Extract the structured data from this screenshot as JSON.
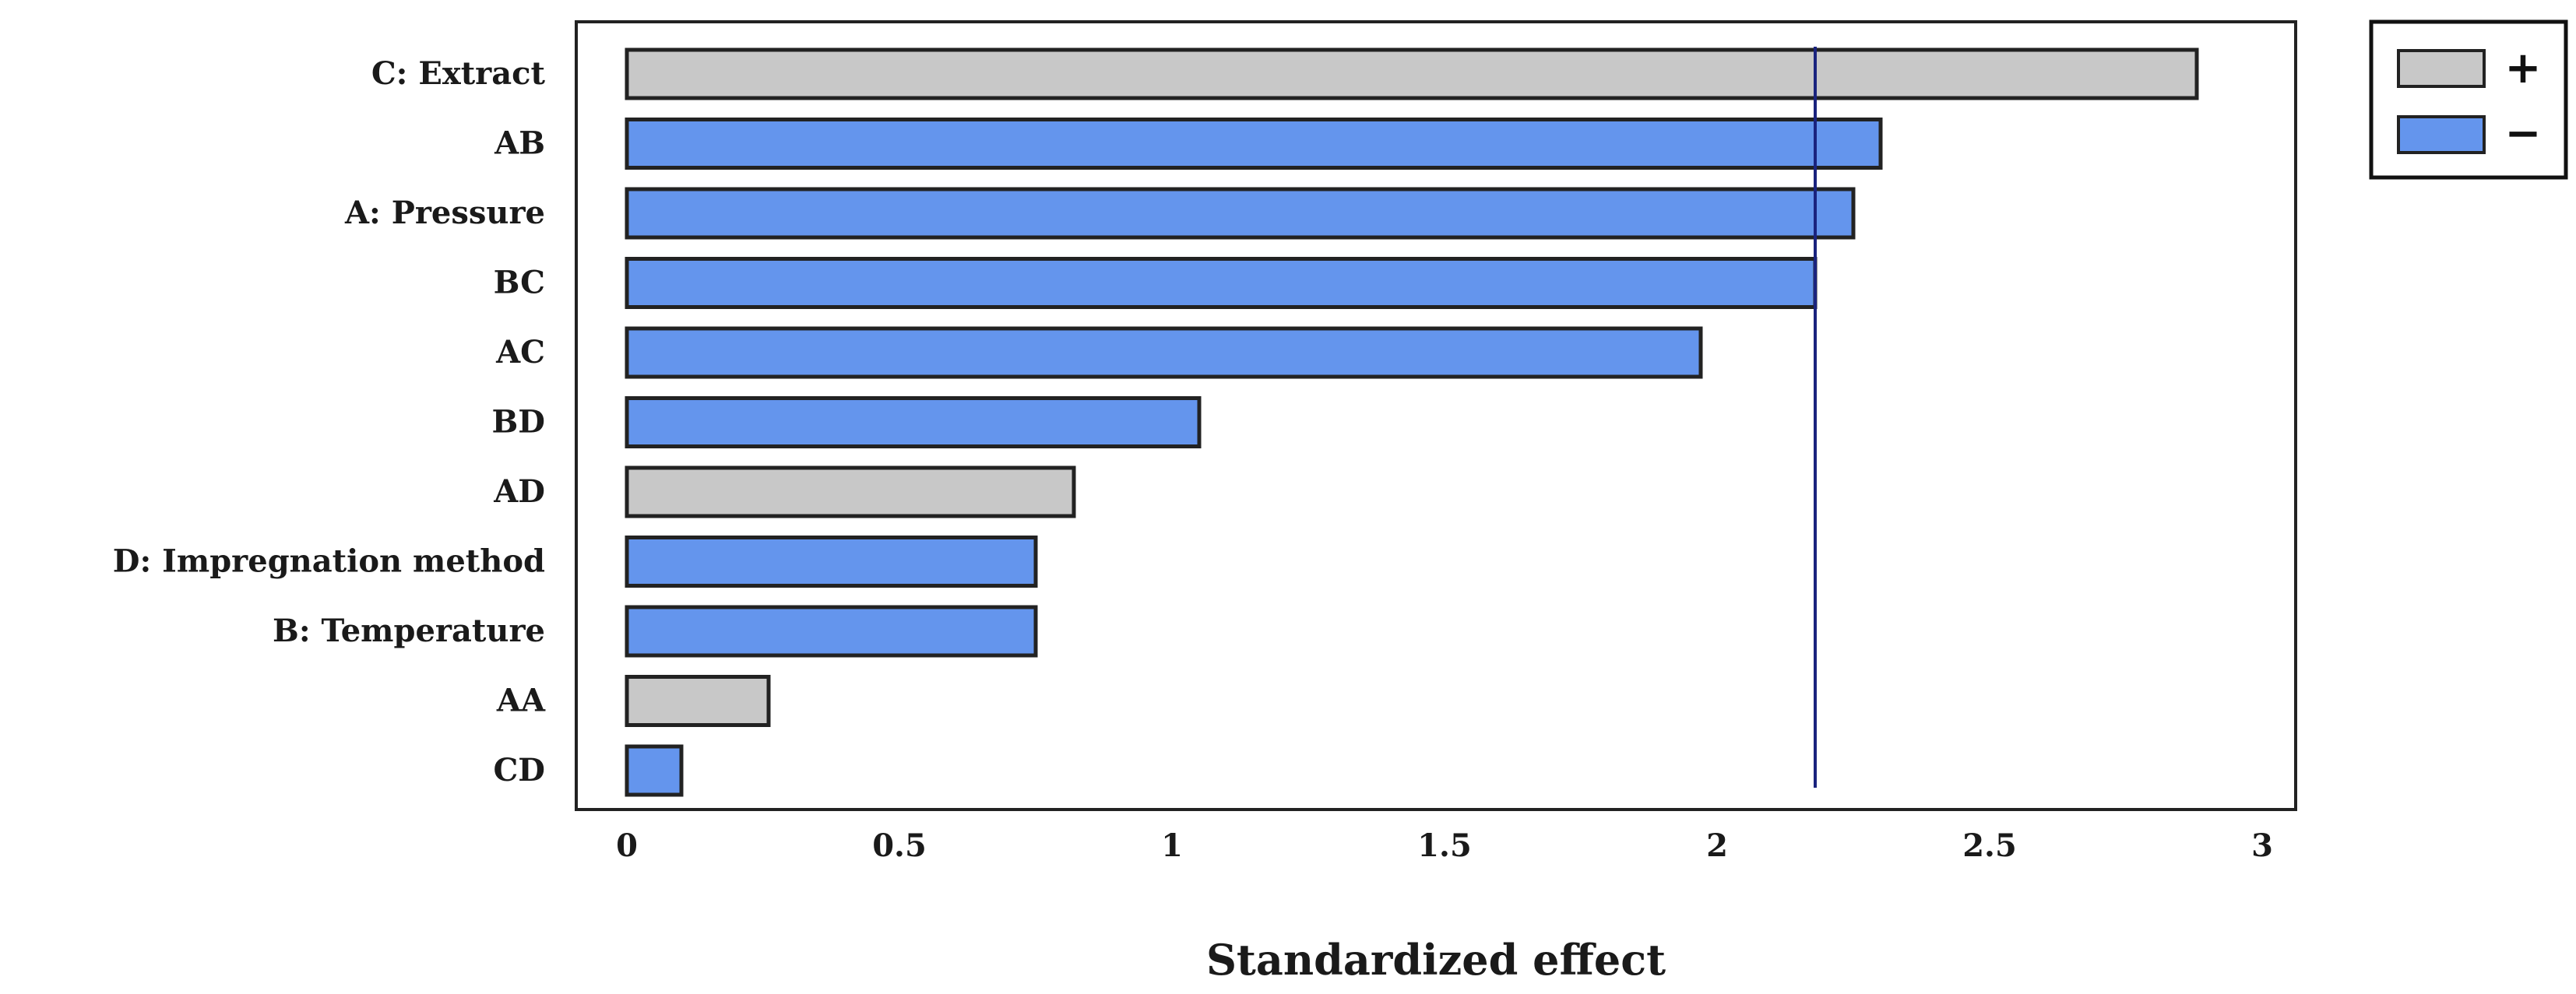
{
  "chart_data": {
    "type": "bar",
    "orientation": "horizontal",
    "categories": [
      "C: Extract",
      "AB",
      "A: Pressure",
      "BC",
      "AC",
      "BD",
      "AD",
      "D: Impregnation method",
      "B: Temperature",
      "AA",
      "CD"
    ],
    "values": [
      2.88,
      2.3,
      2.25,
      2.18,
      1.97,
      1.05,
      0.82,
      0.75,
      0.75,
      0.26,
      0.1
    ],
    "signs": [
      "+",
      "-",
      "-",
      "-",
      "-",
      "-",
      "+",
      "-",
      "-",
      "+",
      "-"
    ],
    "xlabel": "Standardized effect",
    "ylabel": "",
    "xlim": [
      -0.1,
      3.1
    ],
    "xticks": [
      0,
      0.5,
      1,
      1.5,
      2,
      2.5,
      3
    ],
    "xtick_labels": [
      "0",
      "0.5",
      "1",
      "1.5",
      "2",
      "2.5",
      "3"
    ],
    "reference_line": 2.18,
    "legend": {
      "position": "top-right",
      "entries": [
        {
          "label": "+",
          "color": "#c8c8c8"
        },
        {
          "label": "−",
          "color": "#6495ed"
        }
      ]
    },
    "colors": {
      "positive": "#c8c8c8",
      "negative": "#6495ed",
      "reference": "#1a237e"
    }
  }
}
